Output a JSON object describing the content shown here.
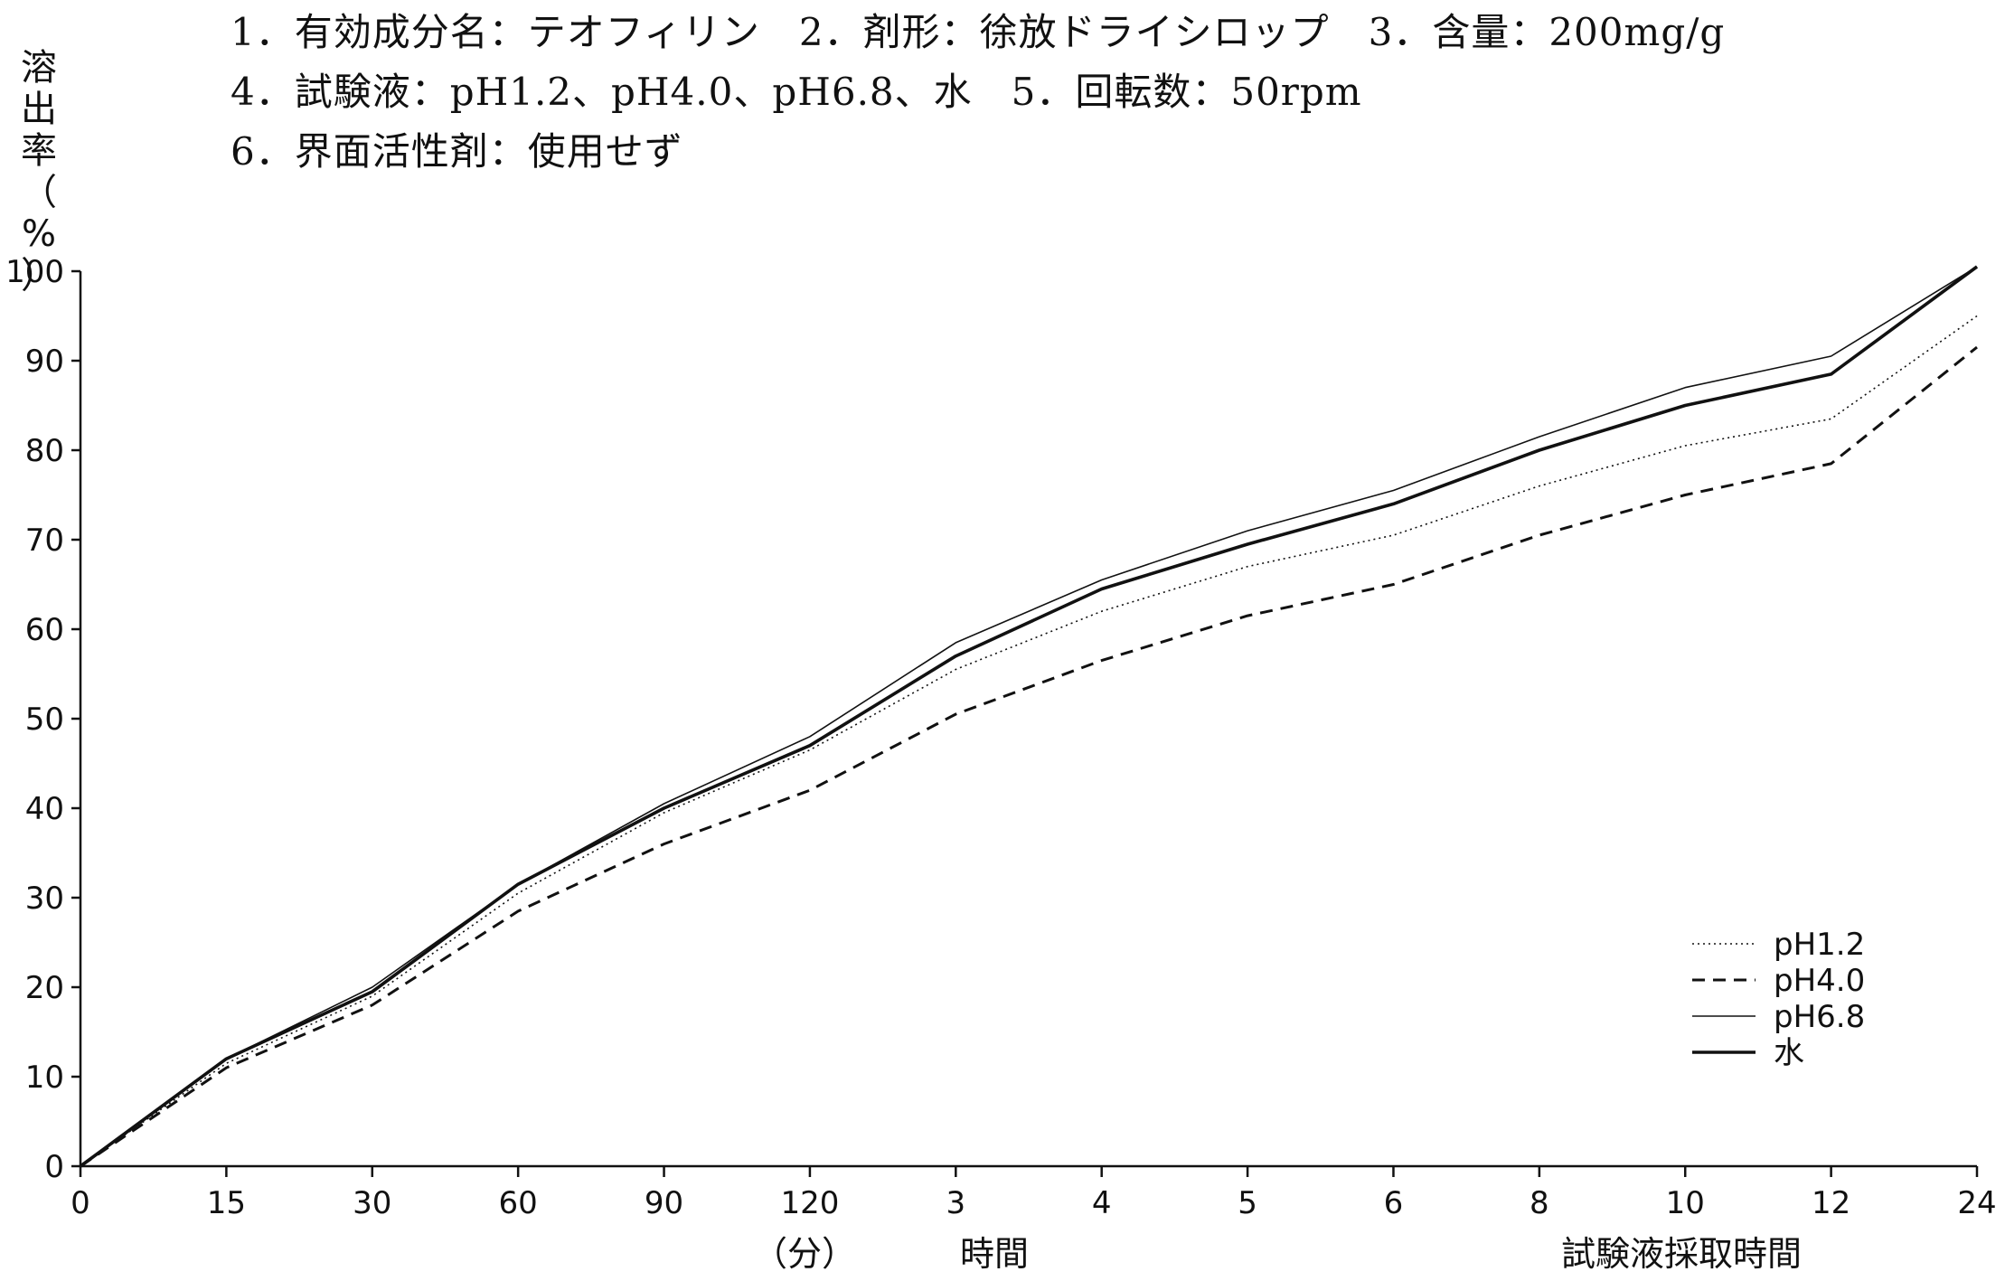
{
  "header": {
    "line1": "1．有効成分名：テオフィリン　2．剤形：徐放ドライシロップ　3．含量：200mg/g",
    "line2": "4．試験液：pH1.2、pH4.0、pH6.8、水　5．回転数：50rpm",
    "line3": "6．界面活性剤：使用せず"
  },
  "chart_data": {
    "type": "line",
    "ylabel": "溶出率（%）",
    "ylabel_chars": [
      "溶",
      "出",
      "率",
      "（",
      "%",
      "）"
    ],
    "xlabel_minutes": "（分）",
    "xlabel_time": "時間",
    "xlabel_sampling": "試験液採取時間",
    "categories": [
      "0",
      "15",
      "30",
      "60",
      "90",
      "120",
      "3",
      "4",
      "5",
      "6",
      "8",
      "10",
      "12",
      "24"
    ],
    "y_ticks": [
      0,
      10,
      20,
      30,
      40,
      50,
      60,
      70,
      80,
      90,
      100
    ],
    "ylim": [
      0,
      100
    ],
    "grid": false,
    "legend_position": "bottom-right",
    "series": [
      {
        "name": "pH1.2",
        "style": "dotted",
        "color": "#111111",
        "values": [
          0,
          11.5,
          19,
          30.5,
          39.5,
          46.5,
          55.5,
          62,
          67,
          70.5,
          76,
          80.5,
          83.5,
          95
        ]
      },
      {
        "name": "pH4.0",
        "style": "dashed",
        "color": "#111111",
        "values": [
          0,
          11,
          18,
          28.5,
          36,
          42,
          50.5,
          56.5,
          61.5,
          65,
          70.5,
          75,
          78.5,
          91.5
        ]
      },
      {
        "name": "pH6.8",
        "style": "thin",
        "color": "#111111",
        "values": [
          0,
          12,
          20,
          31.5,
          40.5,
          48,
          58.5,
          65.5,
          71,
          75.5,
          81.5,
          87,
          90.5,
          100.5
        ]
      },
      {
        "name": "水",
        "style": "thick",
        "color": "#111111",
        "values": [
          0,
          12,
          19.5,
          31.5,
          40,
          47,
          57,
          64.5,
          69.5,
          74,
          80,
          85,
          88.5,
          100.5
        ]
      }
    ]
  }
}
